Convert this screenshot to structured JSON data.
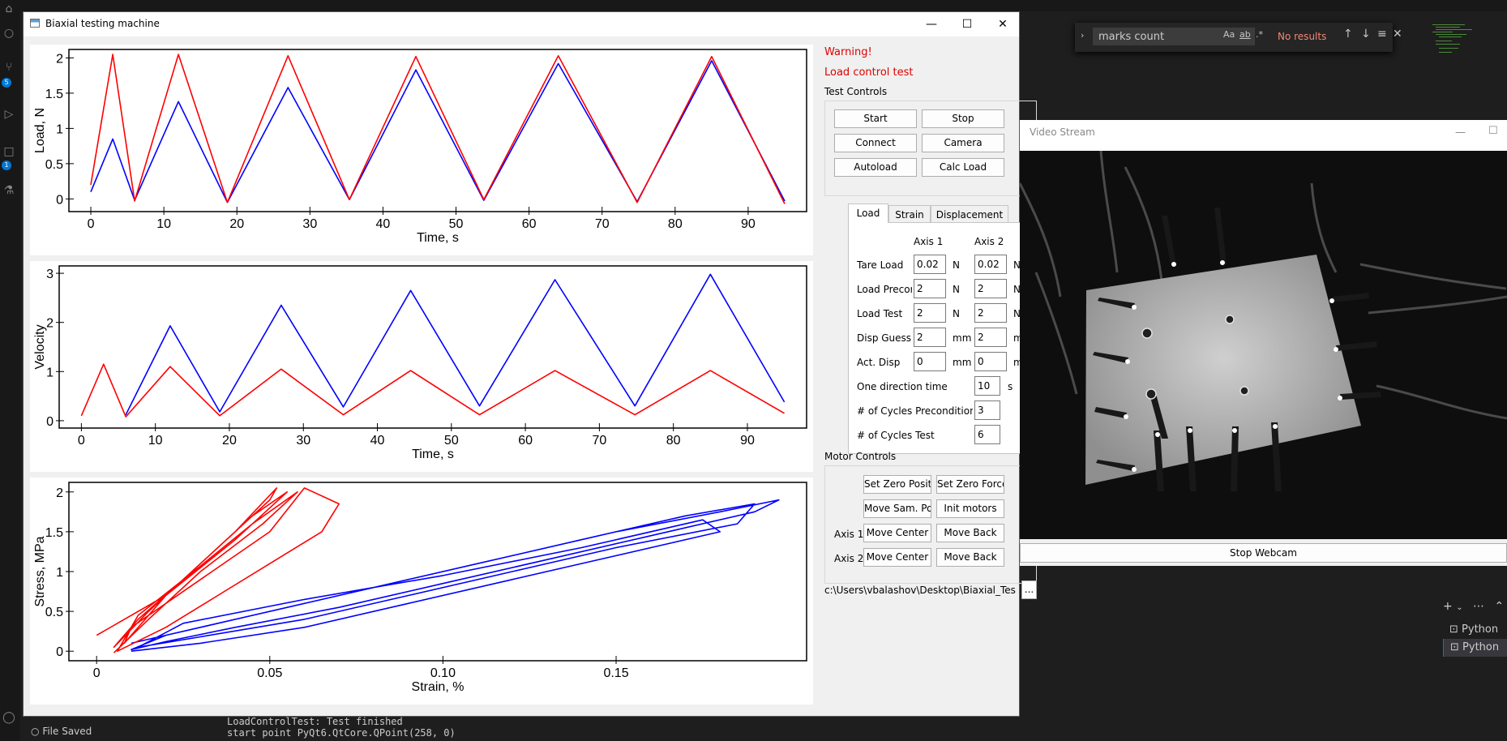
{
  "find": {
    "query": "marks count",
    "status": "No results",
    "opt_case": "Aa",
    "opt_word": "ab",
    "opt_regex": ".*"
  },
  "vscode": {
    "console_lines": [
      "LoadControlTest: Test finished",
      "start point PyQt6.QtCore.QPoint(258, 0)"
    ],
    "file_saved": "File Saved",
    "badges": [
      "5",
      "1"
    ],
    "terminals": [
      "Python",
      "Python"
    ]
  },
  "main_window": {
    "title": "Biaxial testing machine",
    "warning_lines": [
      "Warning!",
      "Load control test"
    ],
    "test_controls": {
      "title": "Test Controls",
      "buttons": [
        "Start",
        "Stop",
        "Connect",
        "Camera",
        "Autoload",
        "Calc Load"
      ]
    },
    "tabs": [
      "Load",
      "Strain",
      "Displacement"
    ],
    "load_tab": {
      "col_axis1": "Axis 1",
      "col_axis2": "Axis 2",
      "rows": [
        {
          "label": "Tare Load",
          "v1": "0.02",
          "u1": "N",
          "v2": "0.02",
          "u2": "N"
        },
        {
          "label": "Load Precor",
          "v1": "2",
          "u1": "N",
          "v2": "2",
          "u2": "N"
        },
        {
          "label": "Load Test",
          "v1": "2",
          "u1": "N",
          "v2": "2",
          "u2": "N"
        },
        {
          "label": "Disp Guess",
          "v1": "2",
          "u1": "mm",
          "v2": "2",
          "u2": "mm"
        },
        {
          "label": "Act. Disp",
          "v1": "0",
          "u1": "mm",
          "v2": "0",
          "u2": "mm"
        }
      ],
      "singles": [
        {
          "label": "One direction time",
          "value": "10",
          "unit": "s"
        },
        {
          "label": "# of Cycles Preconditioning",
          "value": "3",
          "unit": ""
        },
        {
          "label": "# of Cycles Test",
          "value": "6",
          "unit": ""
        }
      ]
    },
    "motor_controls": {
      "title": "Motor Controls",
      "set_zero_position": "Set Zero Position",
      "set_zero_force": "Set Zero Force",
      "move_sample_pos": "Move Sam. Pos.",
      "init_motors": "Init motors",
      "axis1_label": "Axis 1",
      "axis2_label": "Axis 2",
      "move_center": "Move Center",
      "move_back": "Move Back"
    },
    "path": "c:\\Users\\vbalashov\\Desktop\\Biaxial_Tes",
    "browse": "..."
  },
  "video_window": {
    "title": "Video Stream",
    "stop_button": "Stop Webcam"
  },
  "chart_data": [
    {
      "type": "line",
      "title": "",
      "xlabel": "Time, s",
      "ylabel": "Load, N",
      "xlim": [
        -3,
        98
      ],
      "ylim": [
        -0.18,
        2.12
      ],
      "xticks": [
        0,
        10,
        20,
        30,
        40,
        50,
        60,
        70,
        80,
        90
      ],
      "yticks": [
        0,
        0.5,
        1,
        1.5,
        2
      ],
      "ytick_labels": [
        "0",
        "0.5",
        "1",
        "1.5",
        "2"
      ],
      "grid": false,
      "colors": [
        "#0000ff",
        "#ff0000"
      ],
      "series": [
        {
          "x": [
            0,
            3,
            6,
            12,
            18.7,
            27,
            35.4,
            44.5,
            53.8,
            64,
            74.8,
            85,
            95
          ],
          "y": [
            0.1,
            0.85,
            -0.02,
            1.38,
            -0.05,
            1.58,
            -0.01,
            1.83,
            -0.02,
            1.92,
            -0.04,
            1.96,
            -0.03
          ]
        },
        {
          "x": [
            0,
            3,
            6,
            12,
            18.7,
            27,
            35.4,
            44.5,
            53.8,
            64,
            74.8,
            85,
            95
          ],
          "y": [
            0.2,
            2.05,
            -0.03,
            2.05,
            -0.05,
            2.03,
            -0.01,
            2.02,
            -0.01,
            2.03,
            -0.05,
            2.02,
            -0.07
          ]
        }
      ]
    },
    {
      "type": "line",
      "title": "",
      "xlabel": "Time, s",
      "ylabel": "Velocity",
      "xlim": [
        -3,
        98
      ],
      "ylim": [
        -0.15,
        3.15
      ],
      "xticks": [
        0,
        10,
        20,
        30,
        40,
        50,
        60,
        70,
        80,
        90
      ],
      "yticks": [
        0,
        1,
        2,
        3
      ],
      "ytick_labels": [
        "0",
        "1",
        "2",
        "3"
      ],
      "grid": false,
      "colors": [
        "#0000ff",
        "#ff0000"
      ],
      "series": [
        {
          "x": [
            6,
            12,
            18.7,
            27,
            35.4,
            44.5,
            53.8,
            64,
            74.8,
            85,
            95
          ],
          "y": [
            0.12,
            1.93,
            0.18,
            2.35,
            0.28,
            2.65,
            0.3,
            2.87,
            0.3,
            2.98,
            0.38
          ]
        },
        {
          "x": [
            0,
            3,
            6,
            12,
            18.7,
            27,
            35.4,
            44.5,
            53.8,
            64,
            74.8,
            85,
            95
          ],
          "y": [
            0.1,
            1.15,
            0.08,
            1.1,
            0.1,
            1.05,
            0.12,
            1.02,
            0.12,
            1.02,
            0.12,
            1.02,
            0.15
          ]
        }
      ]
    },
    {
      "type": "line",
      "title": "",
      "xlabel": "Strain, %",
      "ylabel": "Stress, MPa",
      "xlim": [
        -0.008,
        0.205
      ],
      "ylim": [
        -0.12,
        2.12
      ],
      "xticks": [
        0,
        0.05,
        0.1,
        0.15
      ],
      "xtick_labels": [
        "0",
        "0.05",
        "0.10",
        "0.15"
      ],
      "yticks": [
        0,
        0.5,
        1,
        1.5,
        2
      ],
      "ytick_labels": [
        "0",
        "0.5",
        "1",
        "1.5",
        "2"
      ],
      "grid": false,
      "colors": [
        "#0000ff",
        "#ff0000"
      ],
      "series": [
        {
          "x": [
            0.01,
            0.03,
            0.06,
            0.09,
            0.12,
            0.15,
            0.18,
            0.197,
            0.19,
            0.16,
            0.13,
            0.1,
            0.07,
            0.04,
            0.02,
            0.01,
            0.02,
            0.05,
            0.08,
            0.11,
            0.14,
            0.17,
            0.19,
            0.185,
            0.15,
            0.12,
            0.09,
            0.06,
            0.03,
            0.012,
            0.025,
            0.06,
            0.1,
            0.14,
            0.175,
            0.18,
            0.15,
            0.12,
            0.09,
            0.06,
            0.03,
            0.01
          ],
          "y": [
            0.1,
            0.3,
            0.6,
            0.9,
            1.2,
            1.5,
            1.75,
            1.9,
            1.75,
            1.45,
            1.15,
            0.85,
            0.55,
            0.3,
            0.12,
            0.02,
            0.2,
            0.5,
            0.8,
            1.1,
            1.4,
            1.7,
            1.85,
            1.6,
            1.3,
            1.0,
            0.7,
            0.4,
            0.18,
            0.05,
            0.35,
            0.65,
            0.95,
            1.3,
            1.65,
            1.5,
            1.2,
            0.9,
            0.6,
            0.3,
            0.1,
            0.0
          ]
        },
        {
          "x": [
            0.0,
            0.02,
            0.035,
            0.05,
            0.052,
            0.04,
            0.025,
            0.012,
            0.005,
            0.015,
            0.03,
            0.045,
            0.055,
            0.04,
            0.02,
            0.008,
            0.01,
            0.03,
            0.05,
            0.06,
            0.07,
            0.065,
            0.05,
            0.035,
            0.02,
            0.006,
            0.012,
            0.028,
            0.045,
            0.058,
            0.048,
            0.03,
            0.015,
            0.005
          ],
          "y": [
            0.2,
            0.7,
            1.3,
            1.9,
            2.05,
            1.5,
            0.9,
            0.4,
            0.05,
            0.5,
            1.1,
            1.7,
            2.0,
            1.4,
            0.7,
            0.1,
            0.3,
            0.9,
            1.5,
            2.05,
            1.85,
            1.5,
            1.1,
            0.7,
            0.3,
            0.0,
            0.45,
            1.0,
            1.6,
            2.0,
            1.6,
            1.0,
            0.4,
            -0.02
          ]
        }
      ]
    }
  ]
}
